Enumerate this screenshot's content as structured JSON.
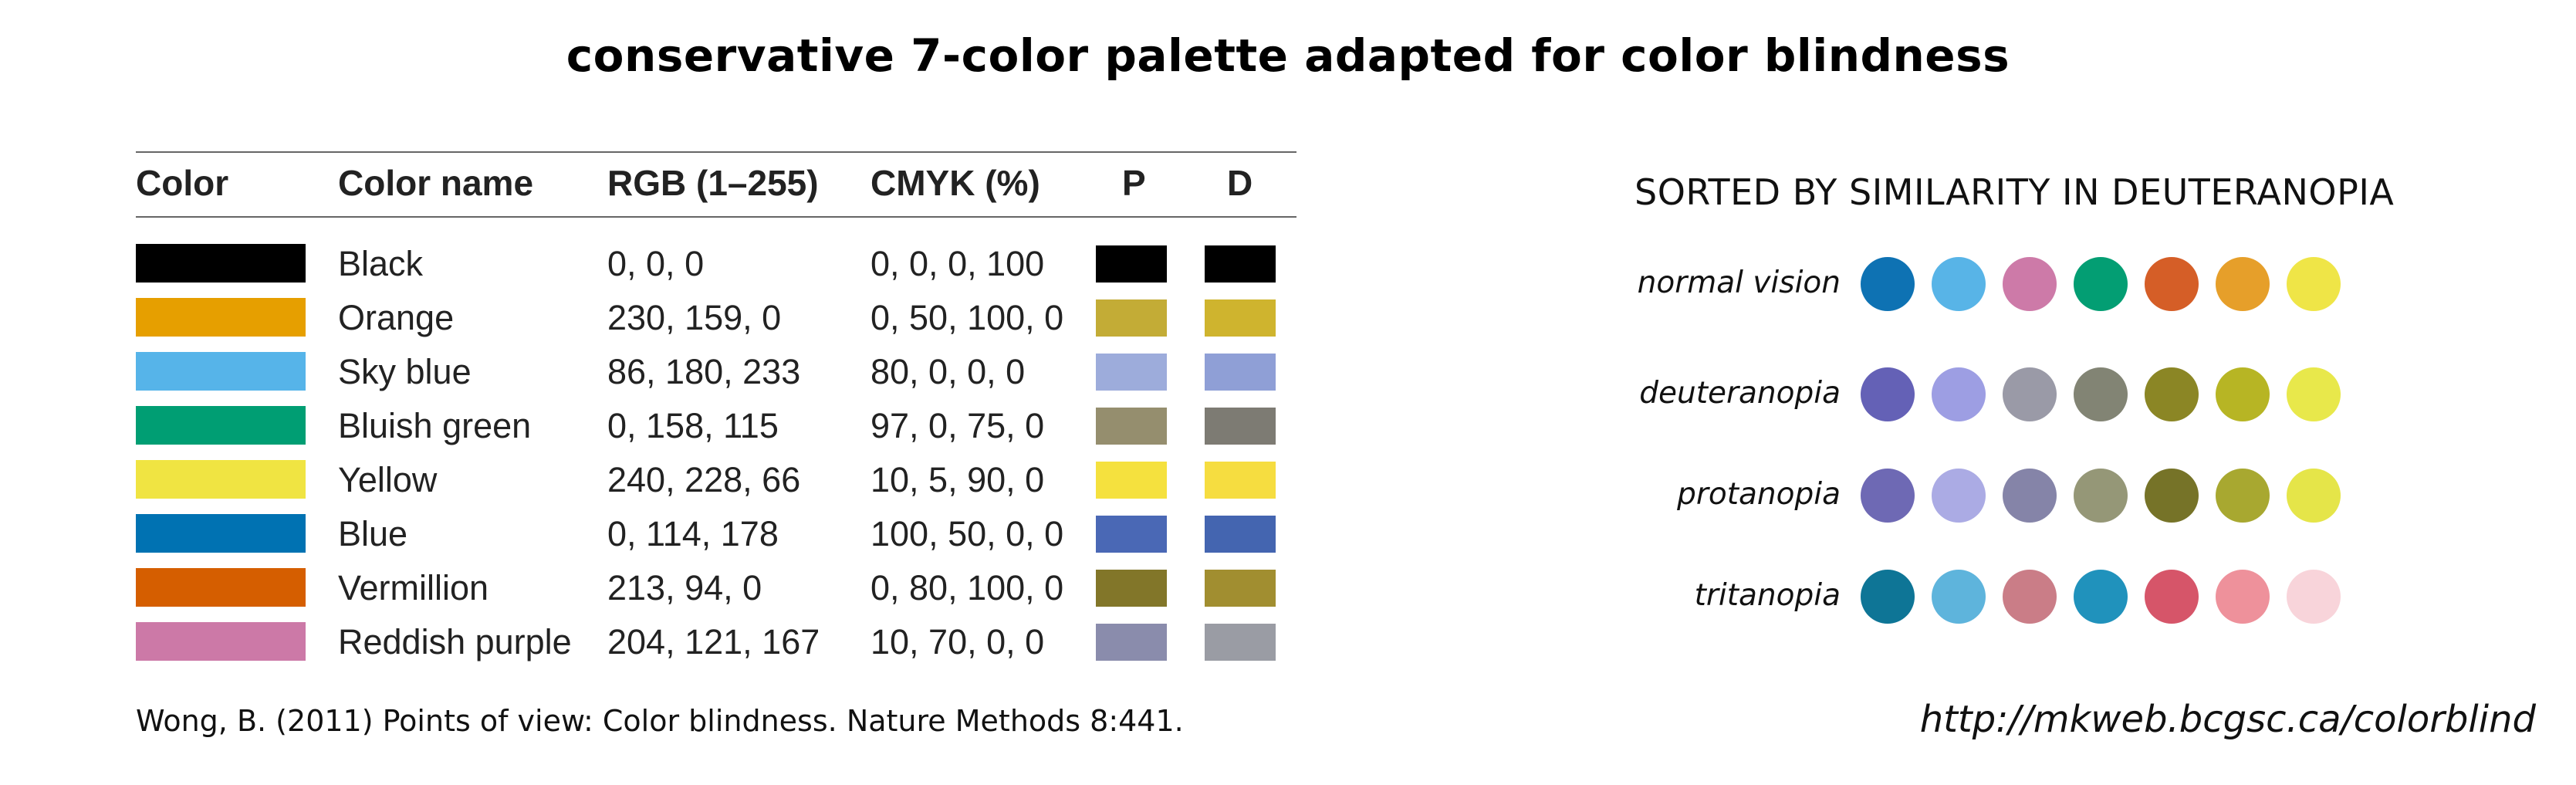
{
  "title": "conservative 7-color palette adapted for color blindness",
  "table": {
    "headers": {
      "color": "Color",
      "color_name": "Color name",
      "rgb": "RGB (1–255)",
      "cmyk": "CMYK (%)",
      "p": "P",
      "d": "D"
    },
    "rows": [
      {
        "name": "Black",
        "rgb": "0, 0, 0",
        "cmyk": "0, 0, 0, 100",
        "swatch": "#000000",
        "p": "#000000",
        "d": "#000000"
      },
      {
        "name": "Orange",
        "rgb": "230, 159, 0",
        "cmyk": "0, 50, 100, 0",
        "swatch": "#E69F00",
        "p": "#C3AC36",
        "d": "#CFB42E"
      },
      {
        "name": "Sky blue",
        "rgb": "86, 180, 233",
        "cmyk": "80, 0, 0, 0",
        "swatch": "#56B4E9",
        "p": "#9DACDB",
        "d": "#8F9FD6"
      },
      {
        "name": "Bluish green",
        "rgb": "0, 158, 115",
        "cmyk": "97, 0, 75, 0",
        "swatch": "#009E73",
        "p": "#958E6E",
        "d": "#7D7B73"
      },
      {
        "name": "Yellow",
        "rgb": "240, 228, 66",
        "cmyk": "10, 5, 90, 0",
        "swatch": "#F0E442",
        "p": "#F5E13E",
        "d": "#F6DD40"
      },
      {
        "name": "Blue",
        "rgb": "0, 114, 178",
        "cmyk": "100, 50, 0, 0",
        "swatch": "#0072B2",
        "p": "#4A68B5",
        "d": "#4465B0"
      },
      {
        "name": "Vermillion",
        "rgb": "213, 94, 0",
        "cmyk": "0, 80, 100, 0",
        "swatch": "#D55E00",
        "p": "#827629",
        "d": "#A18E30"
      },
      {
        "name": "Reddish purple",
        "rgb": "204, 121, 167",
        "cmyk": "10, 70, 0, 0",
        "swatch": "#CC79A7",
        "p": "#8A8CAC",
        "d": "#9A9CA4"
      }
    ]
  },
  "citation": "Wong, B. (2011) Points of view: Color blindness. Nature Methods 8:441.",
  "similarity": {
    "title": "SORTED BY SIMILARITY IN DEUTERANOPIA",
    "rows": [
      {
        "label": "normal vision",
        "colors": [
          "#0E72B3",
          "#58B4E7",
          "#CD7AA8",
          "#039E73",
          "#D55E27",
          "#E69F2A",
          "#EFE547"
        ]
      },
      {
        "label": "deuteranopia",
        "colors": [
          "#6461B6",
          "#9D9EE3",
          "#9A9AA7",
          "#828474",
          "#8B8625",
          "#B7B524",
          "#E8E84B"
        ]
      },
      {
        "label": "protanopia",
        "colors": [
          "#6E69B4",
          "#ABABE4",
          "#8584A8",
          "#959777",
          "#767328",
          "#A8A830",
          "#E5E549"
        ]
      },
      {
        "label": "tritanopia",
        "colors": [
          "#0E7596",
          "#5EB4DC",
          "#CA7D87",
          "#2092BC",
          "#D65569",
          "#EE919B",
          "#F8D4DA"
        ]
      }
    ]
  },
  "url": "http://mkweb.bcgsc.ca/colorblind"
}
